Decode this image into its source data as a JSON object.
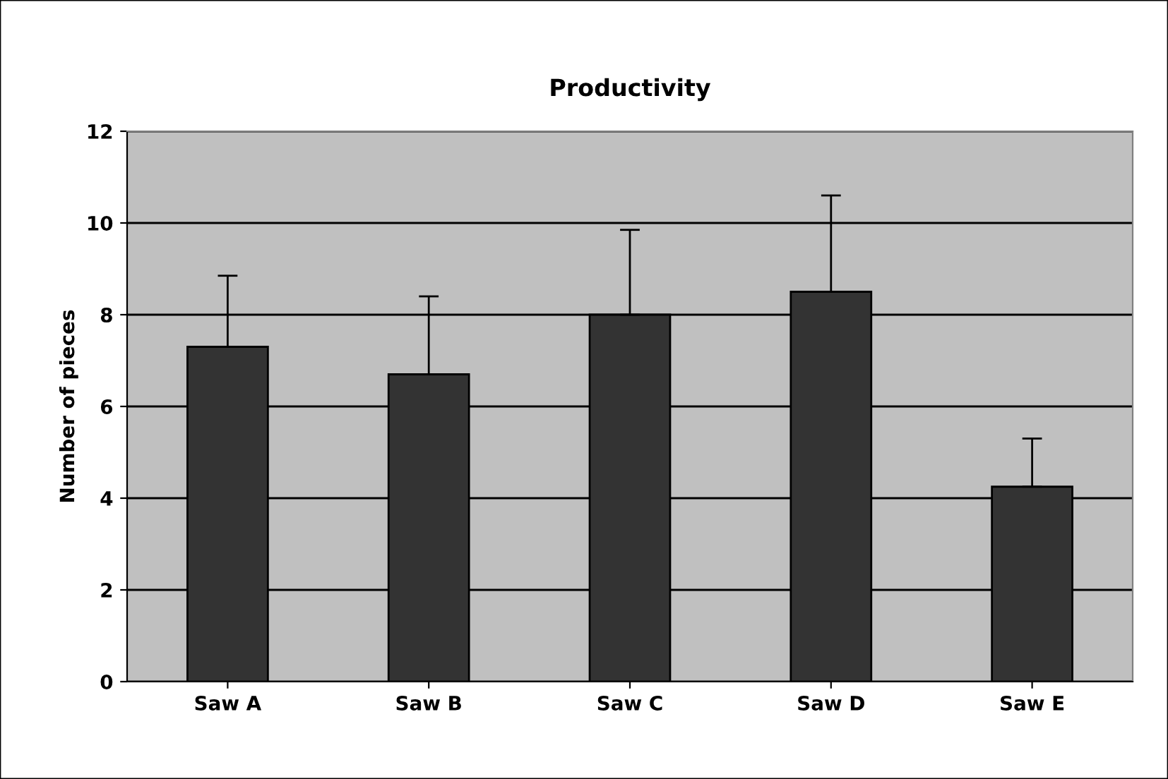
{
  "chart_data": {
    "type": "bar",
    "title": "Productivity",
    "ylabel": "Number of pieces",
    "categories": [
      "Saw A",
      "Saw B",
      "Saw C",
      "Saw D",
      "Saw E"
    ],
    "values": [
      7.3,
      6.7,
      8.0,
      8.5,
      4.25
    ],
    "errors": [
      [
        7.3,
        8.85
      ],
      [
        6.7,
        8.4
      ],
      [
        8.0,
        9.85
      ],
      [
        8.5,
        10.6
      ],
      [
        4.25,
        5.3
      ]
    ],
    "color": "#333333",
    "ylim": [
      0,
      12
    ],
    "yticks": [
      0,
      2,
      4,
      6,
      8,
      10,
      12
    ],
    "grid": "y"
  }
}
